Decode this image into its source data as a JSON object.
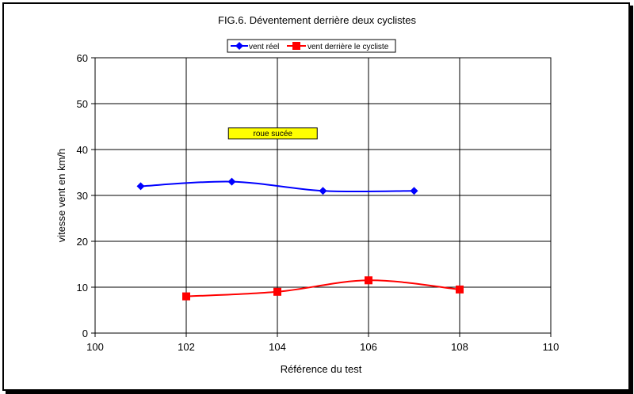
{
  "chart_data": {
    "type": "line",
    "title": "FIG.6. Déventement derrière deux cyclistes",
    "xlabel": "Référence du test",
    "ylabel": "vitesse vent en km/h",
    "xlim": [
      100,
      110
    ],
    "ylim": [
      0,
      60
    ],
    "xticks": [
      100,
      102,
      104,
      106,
      108,
      110
    ],
    "yticks": [
      0,
      10,
      20,
      30,
      40,
      50,
      60
    ],
    "grid": true,
    "legend_position": "top-center",
    "series": [
      {
        "name": "vent réel",
        "color": "#0000ff",
        "marker": "diamond",
        "x": [
          101,
          103,
          105,
          107
        ],
        "y": [
          32,
          33,
          31,
          31
        ]
      },
      {
        "name": "vent derrière le cycliste",
        "color": "#ff0000",
        "marker": "square",
        "x": [
          102,
          104,
          106,
          108
        ],
        "y": [
          8,
          9,
          11.5,
          9.5
        ]
      }
    ],
    "annotations": [
      {
        "text": "roue sucée",
        "x": 103.9,
        "y": 43.5,
        "background": "#ffff00"
      }
    ]
  }
}
